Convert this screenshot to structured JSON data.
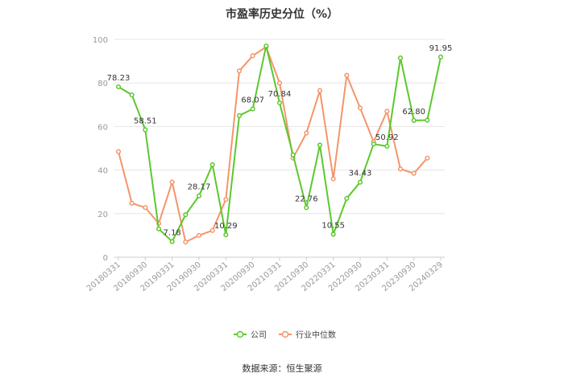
{
  "chart_data": {
    "type": "line",
    "title": "市盈率历史分位（%）",
    "xlabel": "",
    "ylabel": "",
    "ylim": [
      0,
      100
    ],
    "yticks": [
      0,
      20,
      40,
      60,
      80,
      100
    ],
    "grid": true,
    "legend_position": "bottom",
    "x": [
      "20180331",
      "20180630",
      "20180930",
      "20181231",
      "20190331",
      "20190630",
      "20190930",
      "20191231",
      "20200331",
      "20200630",
      "20200930",
      "20201231",
      "20210331",
      "20210630",
      "20210930",
      "20211231",
      "20220331",
      "20220630",
      "20220930",
      "20221231",
      "20230331",
      "20230630",
      "20230930",
      "20231231",
      "20240329"
    ],
    "x_tick_labels": [
      "20180331",
      "20180930",
      "20190331",
      "20190930",
      "20200331",
      "20200930",
      "20210331",
      "20210930",
      "20220331",
      "20220930",
      "20230331",
      "20230930",
      "20240329"
    ],
    "series": [
      {
        "name": "公司",
        "color": "#5cc82e",
        "values": [
          78.23,
          74.5,
          58.51,
          13.0,
          7.18,
          19.5,
          28.17,
          42.5,
          10.29,
          65.0,
          68.07,
          97.0,
          70.84,
          47.0,
          22.76,
          51.5,
          10.55,
          27.0,
          34.43,
          52.0,
          50.92,
          91.5,
          62.8,
          62.9,
          91.95
        ],
        "labels": [
          "78.23",
          null,
          "58.51",
          null,
          "7.18",
          null,
          "28.17",
          null,
          "10.29",
          null,
          "68.07",
          null,
          "70.84",
          null,
          "22.76",
          null,
          "10.55",
          null,
          "34.43",
          null,
          "50.92",
          null,
          "62.80",
          null,
          "91.95"
        ]
      },
      {
        "name": "行业中位数",
        "color": "#f4956a",
        "values": [
          48.5,
          24.8,
          22.8,
          15.5,
          34.5,
          7.0,
          10.0,
          12.3,
          26.5,
          85.5,
          92.5,
          96.5,
          80.0,
          45.5,
          57.0,
          76.5,
          36.0,
          83.5,
          68.5,
          53.0,
          67.0,
          40.5,
          38.5,
          45.5,
          null
        ]
      }
    ]
  },
  "footer": {
    "source_label": "数据来源：恒生聚源"
  }
}
